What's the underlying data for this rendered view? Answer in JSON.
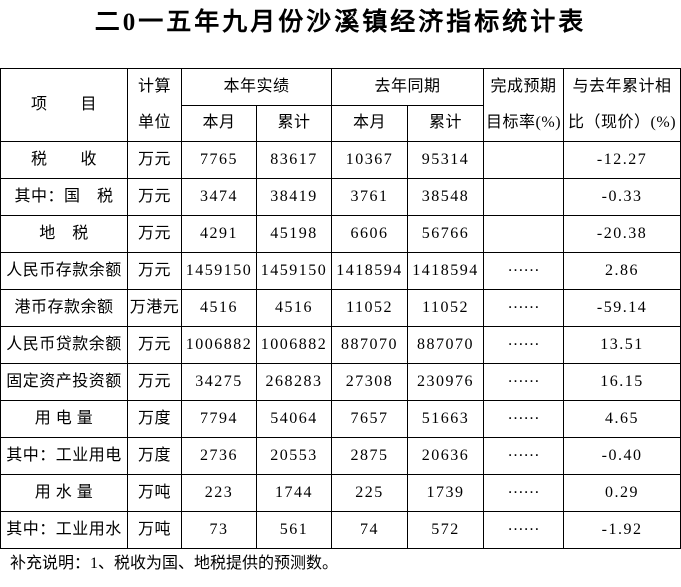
{
  "title": "二0一五年九月份沙溪镇经济指标统计表",
  "table": {
    "header": {
      "item": "项　　目",
      "unit": [
        "计算",
        "单位"
      ],
      "current_year": "本年实绩",
      "last_year": "去年同期",
      "month": "本月",
      "cumulative": "累计",
      "target_rate": [
        "完成预期",
        "目标率(%)"
      ],
      "yoy_change": [
        "与去年累计相",
        "比（现价）(%)"
      ]
    },
    "rows": [
      {
        "item": "税　　收",
        "unit": "万元",
        "current_month": "7765",
        "current_cumulative": "83617",
        "last_year_month": "10367",
        "last_year_cumulative": "95314",
        "yoy_change": "-12.27"
      },
      {
        "item": "其中：国　税",
        "unit": "万元",
        "current_month": "3474",
        "current_cumulative": "38419",
        "last_year_month": "3761",
        "last_year_cumulative": "38548",
        "yoy_change": "-0.33"
      },
      {
        "item": "地　税",
        "unit": "万元",
        "current_month": "4291",
        "current_cumulative": "45198",
        "last_year_month": "6606",
        "last_year_cumulative": "56766",
        "yoy_change": "-20.38"
      },
      {
        "item": "人民币存款余额",
        "unit": "万元",
        "current_month": "1459150",
        "current_cumulative": "1459150",
        "last_year_month": "1418594",
        "last_year_cumulative": "1418594",
        "target_rate": "……",
        "yoy_change": "2.86"
      },
      {
        "item": "港币存款余额",
        "unit": "万港元",
        "current_month": "4516",
        "current_cumulative": "4516",
        "last_year_month": "11052",
        "last_year_cumulative": "11052",
        "target_rate": "……",
        "yoy_change": "-59.14"
      },
      {
        "item": "人民币贷款余额",
        "unit": "万元",
        "current_month": "1006882",
        "current_cumulative": "1006882",
        "last_year_month": "887070",
        "last_year_cumulative": "887070",
        "target_rate": "……",
        "yoy_change": "13.51"
      },
      {
        "item": "固定资产投资额",
        "unit": "万元",
        "current_month": "34275",
        "current_cumulative": "268283",
        "last_year_month": "27308",
        "last_year_cumulative": "230976",
        "target_rate": "……",
        "yoy_change": "16.15"
      },
      {
        "item": "用 电 量",
        "unit": "万度",
        "current_month": "7794",
        "current_cumulative": "54064",
        "last_year_month": "7657",
        "last_year_cumulative": "51663",
        "target_rate": "……",
        "yoy_change": "4.65"
      },
      {
        "item": "其中：工业用电",
        "unit": "万度",
        "current_month": "2736",
        "current_cumulative": "20553",
        "last_year_month": "2875",
        "last_year_cumulative": "20636",
        "target_rate": "……",
        "yoy_change": "-0.40"
      },
      {
        "item": "用 水 量",
        "unit": "万吨",
        "current_month": "223",
        "current_cumulative": "1744",
        "last_year_month": "225",
        "last_year_cumulative": "1739",
        "target_rate": "……",
        "yoy_change": "0.29"
      },
      {
        "item": "其中：工业用水",
        "unit": "万吨",
        "current_month": "73",
        "current_cumulative": "561",
        "last_year_month": "74",
        "last_year_cumulative": "572",
        "target_rate": "……",
        "yoy_change": "-1.92"
      }
    ]
  },
  "note": "补充说明：1、税收为国、地税提供的预测数。"
}
